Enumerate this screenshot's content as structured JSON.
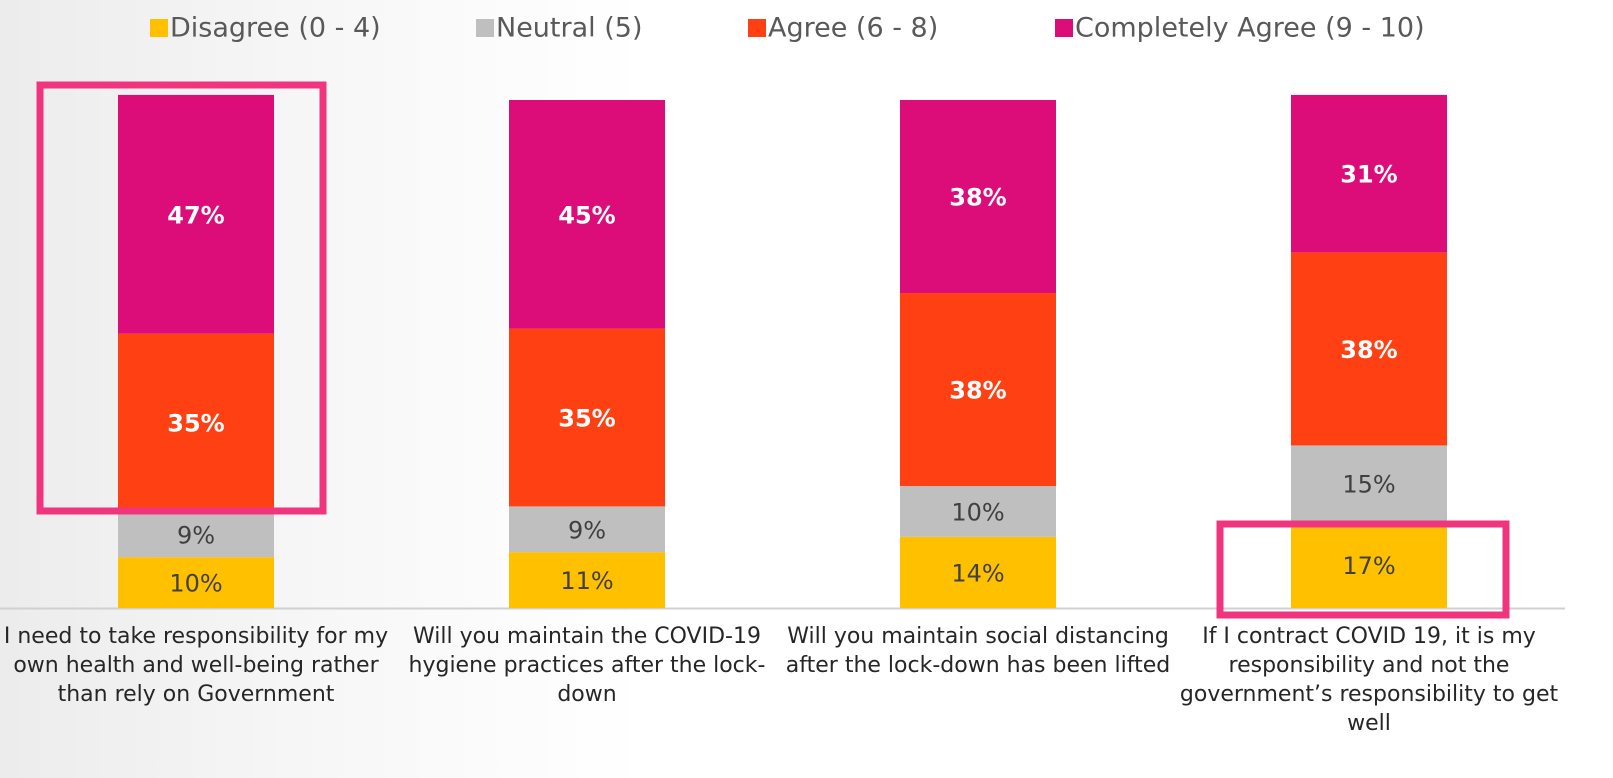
{
  "chart_data": {
    "type": "stacked_bar",
    "categories": [
      "I need to take responsibility for my own health and well-being rather than rely on Government",
      "Will you maintain the COVID-19 hygiene practices after the lock-down",
      "Will you maintain social distancing after the lock-down has been lifted",
      "If I contract COVID 19, it is my responsibility and not the government’s responsibility to get well"
    ],
    "series": [
      {
        "name": "Disagree (0 - 4)",
        "color": "#FFC000",
        "values": [
          10,
          11,
          14,
          17
        ],
        "value_labels": [
          "10%",
          "11%",
          "14%",
          "17%"
        ]
      },
      {
        "name": "Neutral (5)",
        "color": "#BFBFBF",
        "values": [
          9,
          9,
          10,
          15
        ],
        "value_labels": [
          "9%",
          "9%",
          "10%",
          "15%"
        ]
      },
      {
        "name": "Agree (6 - 8)",
        "color": "#FF4013",
        "values": [
          35,
          35,
          38,
          38
        ],
        "value_labels": [
          "35%",
          "35%",
          "38%",
          "38%"
        ]
      },
      {
        "name": "Completely Agree (9 - 10)",
        "color": "#DC0C78",
        "values": [
          47,
          45,
          38,
          31
        ],
        "value_labels": [
          "47%",
          "45%",
          "38%",
          "31%"
        ]
      }
    ],
    "ylim": [
      0,
      100
    ]
  }
}
